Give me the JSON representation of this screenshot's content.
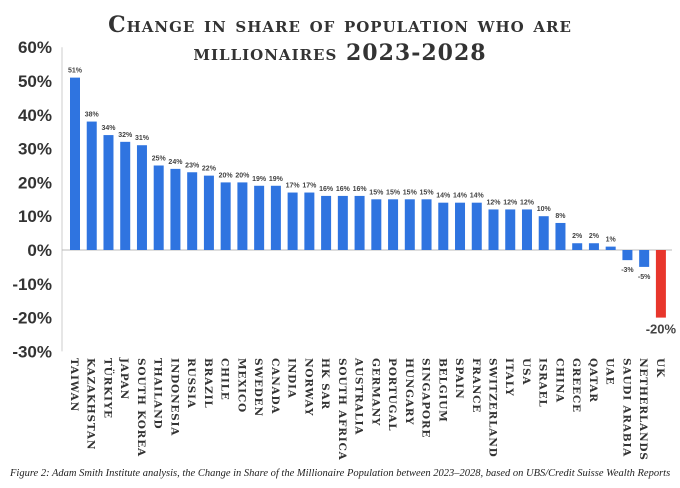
{
  "chart_data": {
    "type": "bar",
    "title": "Change in share of population who are millionaires 2023-2028",
    "title_lines": [
      "Change in share of population who are",
      "millionaires 2023-2028"
    ],
    "categories": [
      "Taiwan",
      "Kazakhstan",
      "Türkiye",
      "Japan",
      "South Korea",
      "Thailand",
      "Indonesia",
      "Russia",
      "Brazil",
      "Chile",
      "Mexico",
      "Sweden",
      "Canada",
      "India",
      "Norway",
      "HK SAR",
      "South Africa",
      "Australia",
      "Germany",
      "Portugal",
      "Hungary",
      "Singapore",
      "Belgium",
      "Spain",
      "France",
      "Switzerland",
      "Italy",
      "USA",
      "Israel",
      "China",
      "Greece",
      "Qatar",
      "UAE",
      "Saudi Arabia",
      "Netherlands",
      "UK"
    ],
    "values": [
      51,
      38,
      34,
      32,
      31,
      25,
      24,
      23,
      22,
      20,
      20,
      19,
      19,
      17,
      17,
      16,
      16,
      16,
      15,
      15,
      15,
      15,
      14,
      14,
      14,
      12,
      12,
      12,
      10,
      8,
      2,
      2,
      1,
      -3,
      -5,
      -20
    ],
    "data_labels": [
      "51%",
      "38%",
      "34%",
      "32%",
      "31%",
      "25%",
      "24%",
      "23%",
      "22%",
      "20%",
      "20%",
      "19%",
      "19%",
      "17%",
      "17%",
      "16%",
      "16%",
      "16%",
      "15%",
      "15%",
      "15%",
      "15%",
      "14%",
      "14%",
      "14%",
      "12%",
      "12%",
      "12%",
      "10%",
      "8%",
      "2%",
      "2%",
      "1%",
      "-3%",
      "-5%",
      "-20%"
    ],
    "ylim": [
      -30,
      60
    ],
    "yticks": [
      "60%",
      "50%",
      "40%",
      "30%",
      "20%",
      "10%",
      "0%",
      "-10%",
      "-20%",
      "-30%"
    ],
    "ytick_values": [
      60,
      50,
      40,
      30,
      20,
      10,
      0,
      -10,
      -20,
      -30
    ],
    "xlabel": "",
    "ylabel": "",
    "grid": false,
    "colors": {
      "default": "#2f74e0",
      "highlight": "#e8362c",
      "highlight_category": "UK"
    }
  },
  "caption": "Figure 2: Adam Smith Institute analysis, the Change in Share of the Millionaire Population between 2023–2028, based on UBS/Credit Suisse Wealth Reports"
}
